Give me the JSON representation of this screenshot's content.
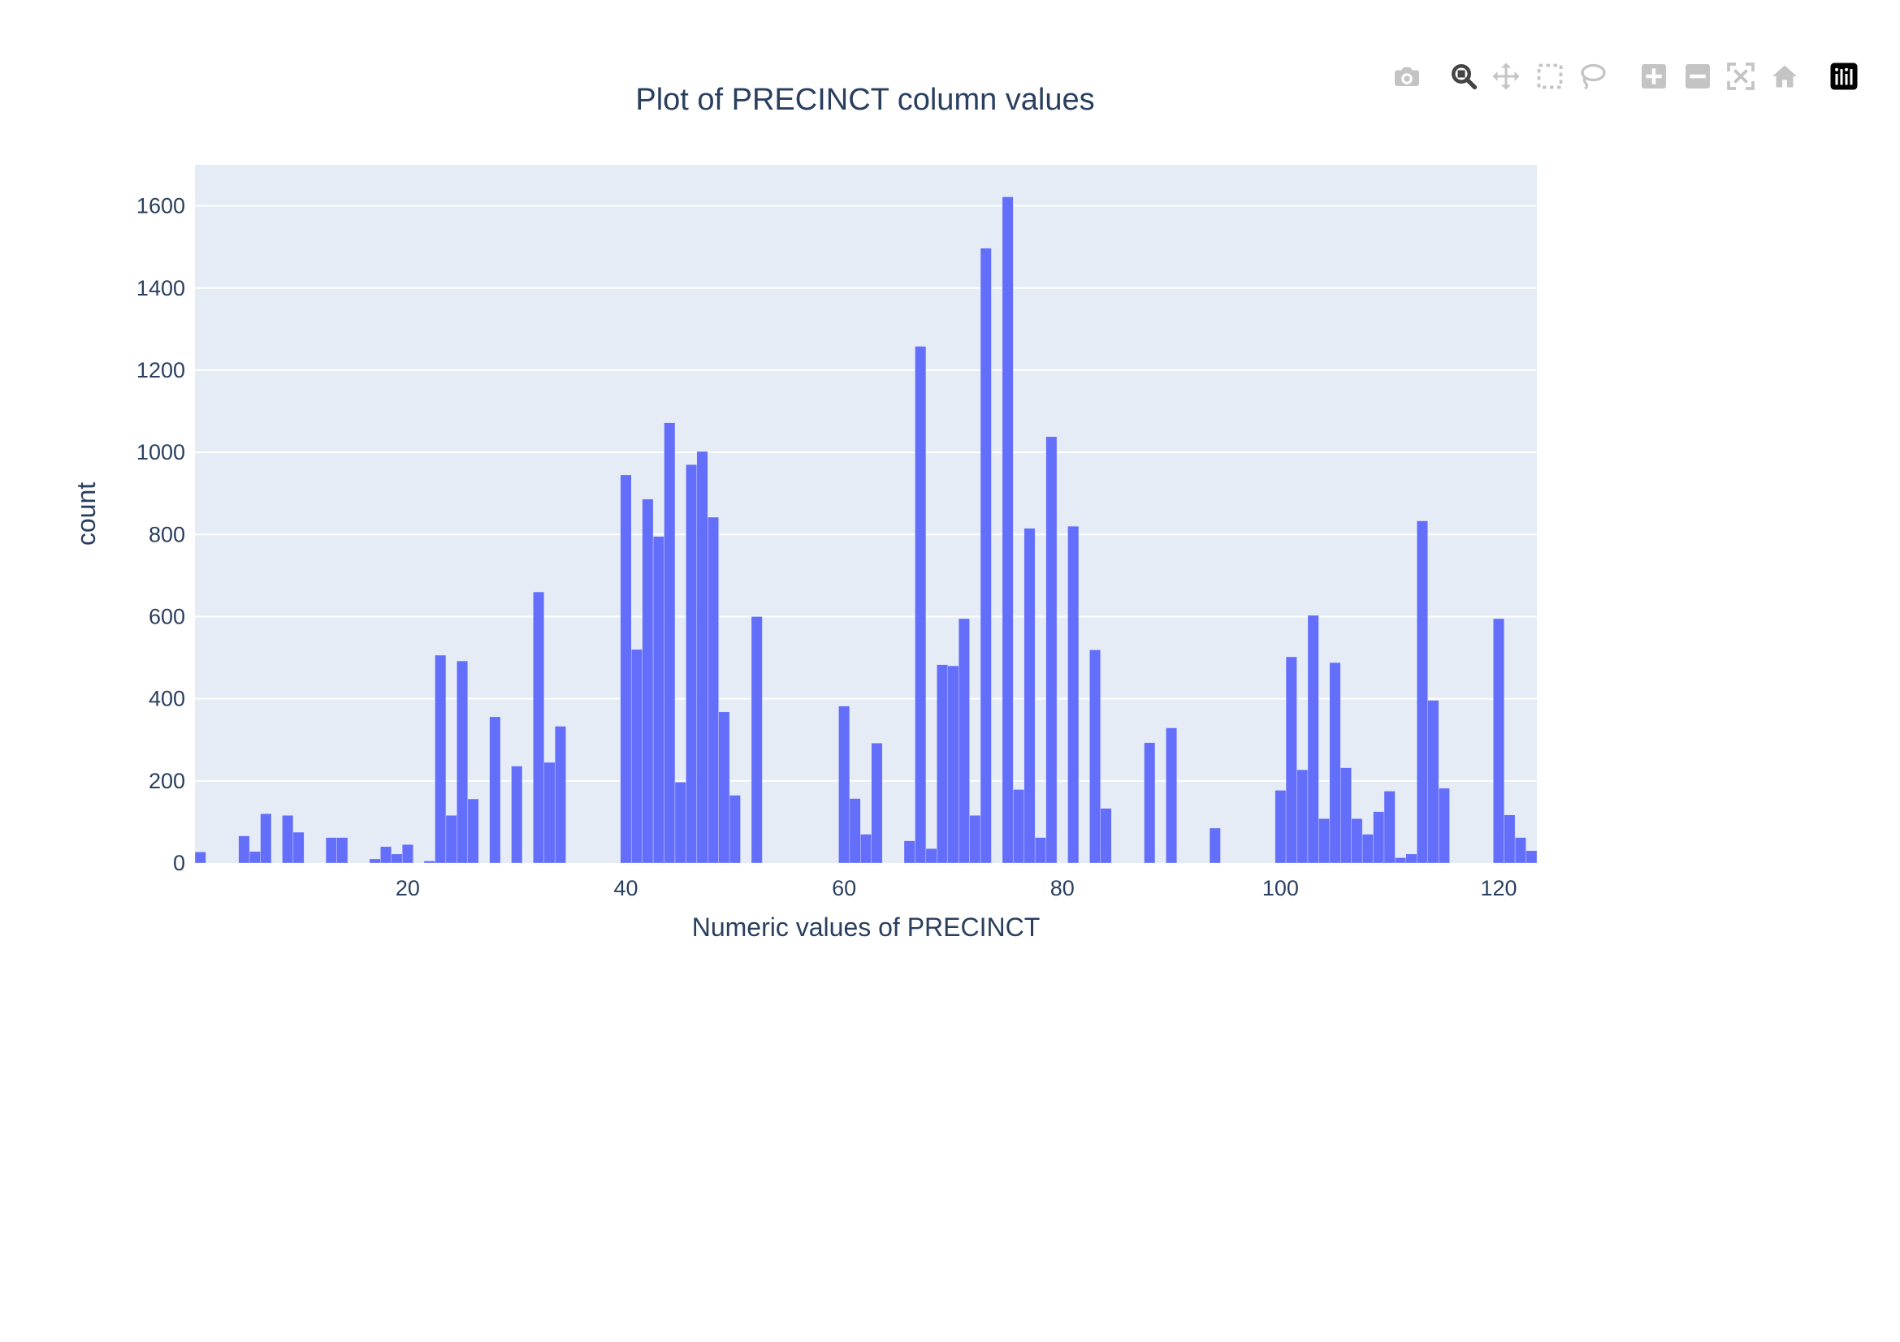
{
  "toolbar": {
    "buttons": [
      {
        "name": "camera-icon",
        "title": "Download plot as a png",
        "active": false
      },
      {
        "name": "zoom-icon",
        "title": "Zoom",
        "active": true
      },
      {
        "name": "pan-icon",
        "title": "Pan",
        "active": false
      },
      {
        "name": "box-select-icon",
        "title": "Box Select",
        "active": false
      },
      {
        "name": "lasso-select-icon",
        "title": "Lasso Select",
        "active": false
      },
      {
        "name": "zoom-in-icon",
        "title": "Zoom in",
        "active": false
      },
      {
        "name": "zoom-out-icon",
        "title": "Zoom out",
        "active": false
      },
      {
        "name": "autoscale-icon",
        "title": "Autoscale",
        "active": false
      },
      {
        "name": "reset-axes-icon",
        "title": "Reset axes",
        "active": false
      },
      {
        "name": "plotly-logo-icon",
        "title": "Produced with Plotly",
        "active": false
      }
    ]
  },
  "chart_data": {
    "type": "bar",
    "title": "Plot of PRECINCT column values",
    "xlabel": "Numeric values of PRECINCT",
    "ylabel": "count",
    "xlim": [
      0.5,
      123.5
    ],
    "ylim": [
      0,
      1700
    ],
    "xticks": [
      20,
      40,
      60,
      80,
      100,
      120
    ],
    "yticks": [
      0,
      200,
      400,
      600,
      800,
      1000,
      1200,
      1400,
      1600
    ],
    "grid": true,
    "bar_width": 1,
    "colors": {
      "bar": "#636efa",
      "plot_bg": "#e5ecf6",
      "grid": "#ffffff",
      "text": "#2a3f5f"
    },
    "x": [
      1,
      5,
      6,
      7,
      9,
      10,
      13,
      14,
      17,
      18,
      19,
      20,
      22,
      23,
      24,
      25,
      26,
      28,
      30,
      32,
      33,
      34,
      40,
      41,
      42,
      43,
      44,
      45,
      46,
      47,
      48,
      49,
      50,
      52,
      60,
      61,
      62,
      63,
      66,
      67,
      68,
      69,
      70,
      71,
      72,
      73,
      75,
      76,
      77,
      78,
      79,
      81,
      83,
      84,
      88,
      90,
      94,
      100,
      101,
      102,
      103,
      104,
      105,
      106,
      107,
      108,
      109,
      110,
      111,
      112,
      113,
      114,
      115,
      120,
      121,
      122,
      123
    ],
    "values": [
      27,
      66,
      28,
      120,
      116,
      75,
      62,
      62,
      10,
      40,
      22,
      45,
      5,
      506,
      116,
      492,
      156,
      356,
      236,
      660,
      245,
      333,
      945,
      520,
      886,
      795,
      1072,
      197,
      970,
      1002,
      842,
      368,
      165,
      600,
      382,
      157,
      70,
      292,
      54,
      1258,
      35,
      483,
      480,
      595,
      116,
      1497,
      1622,
      179,
      815,
      62,
      1038,
      820,
      519,
      133,
      293,
      329,
      85,
      177,
      502,
      227,
      603,
      108,
      488,
      232,
      108,
      70,
      125,
      175,
      13,
      22,
      833,
      396,
      182,
      595,
      117,
      62,
      30
    ]
  }
}
